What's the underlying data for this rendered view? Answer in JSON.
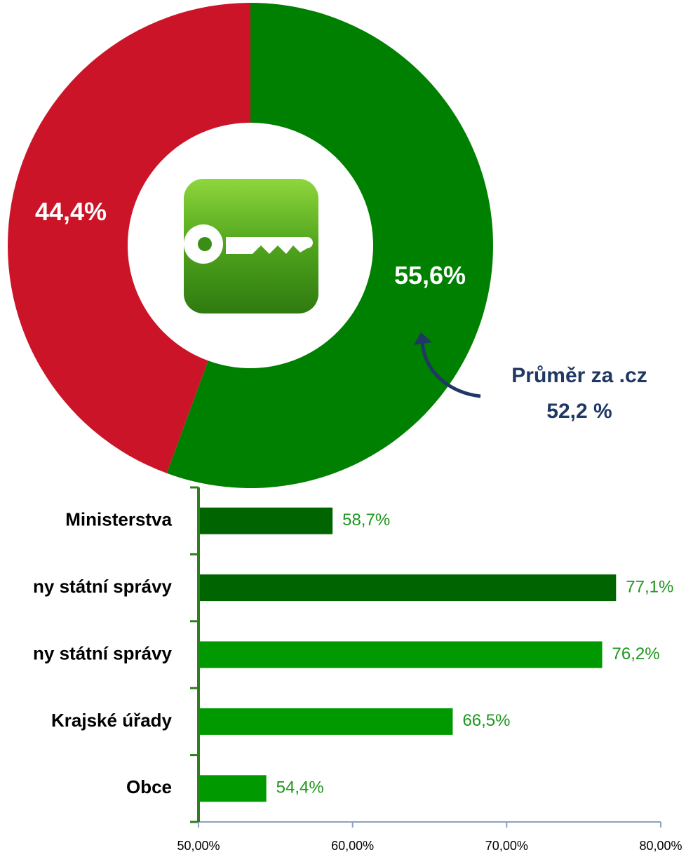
{
  "chart_data": [
    {
      "type": "pie",
      "donut": true,
      "values": [
        55.6,
        44.4
      ],
      "value_labels": [
        "55,6%",
        "44,4%"
      ],
      "colors": [
        "#008000",
        "#cc1428"
      ],
      "annotations": [
        "Průměr za .cz",
        "52,2 %"
      ]
    },
    {
      "type": "bar",
      "orientation": "horizontal",
      "categories": [
        "Ministerstva",
        "ny státní správy",
        "ny státní správy",
        "Krajské úřady",
        "Obce"
      ],
      "values": [
        58.7,
        77.1,
        76.2,
        66.5,
        54.4
      ],
      "value_labels": [
        "58,7%",
        "77,1%",
        "76,2%",
        "66,5%",
        "54,4%"
      ],
      "colors": [
        "#006400",
        "#006400",
        "#009a00",
        "#009a00",
        "#009a00"
      ],
      "xlim": [
        50,
        80
      ],
      "xticks": [
        {
          "value": 50,
          "label": "50,00%"
        },
        {
          "value": 60,
          "label": "60,00%"
        },
        {
          "value": 70,
          "label": "70,00%"
        },
        {
          "value": 80,
          "label": "80,00%"
        }
      ]
    }
  ]
}
